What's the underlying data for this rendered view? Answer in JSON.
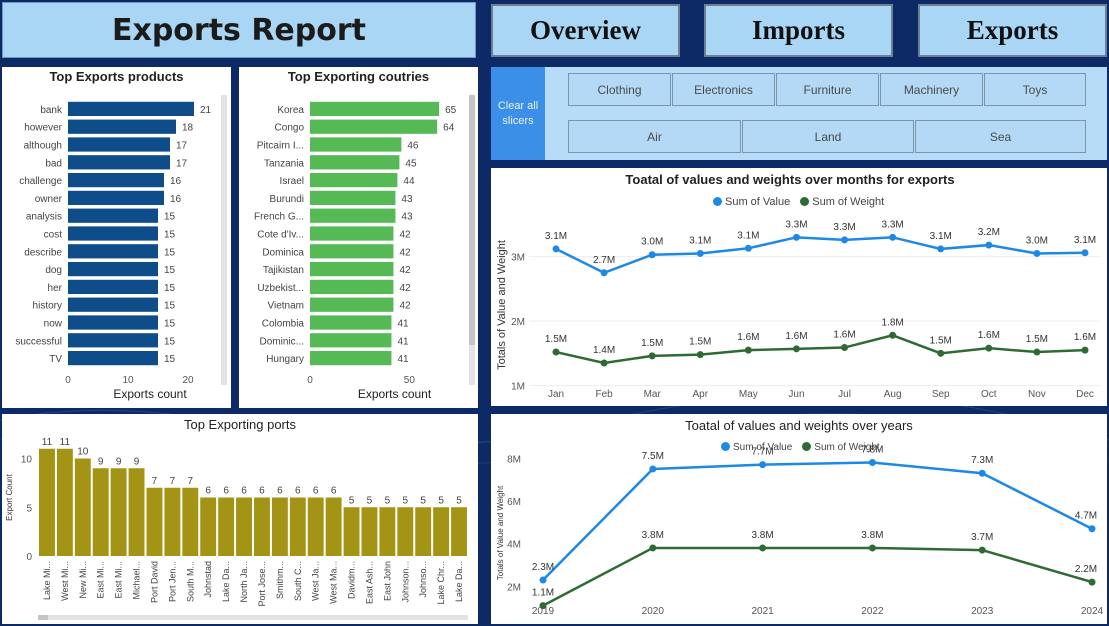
{
  "header": {
    "title": "Exports Report"
  },
  "nav": {
    "overview": "Overview",
    "imports": "Imports",
    "exports": "Exports"
  },
  "slicers": {
    "clear_label": "Clear all slicers",
    "categories": [
      "Clothing",
      "Electronics",
      "Furniture",
      "Machinery",
      "Toys"
    ],
    "modes": [
      "Air",
      "Land",
      "Sea"
    ]
  },
  "colors": {
    "navy_bar": "#0f4c8a",
    "green_bar": "#55b955",
    "olive_bar": "#a39415",
    "value_line": "#1e88e5",
    "weight_line": "#2e6b34"
  },
  "chart_data": [
    {
      "id": "top_products",
      "type": "bar",
      "orientation": "horizontal",
      "title": "Top Exports products",
      "xlabel": "Exports count",
      "ylabel": "",
      "categories": [
        "bank",
        "however",
        "although",
        "bad",
        "challenge",
        "owner",
        "analysis",
        "cost",
        "describe",
        "dog",
        "her",
        "history",
        "now",
        "successful",
        "TV"
      ],
      "values": [
        21,
        18,
        17,
        17,
        16,
        16,
        15,
        15,
        15,
        15,
        15,
        15,
        15,
        15,
        15
      ],
      "xlim": [
        0,
        24
      ],
      "ticks": [
        0,
        10,
        20
      ]
    },
    {
      "id": "top_countries",
      "type": "bar",
      "orientation": "horizontal",
      "title": "Top Exporting coutries",
      "xlabel": "Exports count",
      "ylabel": "",
      "categories": [
        "Korea",
        "Congo",
        "Pitcairn I...",
        "Tanzania",
        "Israel",
        "Burundi",
        "French G...",
        "Cote d'Iv...",
        "Dominica",
        "Tajikistan",
        "Uzbekist...",
        "Vietnam",
        "Colombia",
        "Dominic...",
        "Hungary"
      ],
      "values": [
        65,
        64,
        46,
        45,
        44,
        43,
        43,
        42,
        42,
        42,
        42,
        42,
        41,
        41,
        41
      ],
      "xlim": [
        0,
        75
      ],
      "ticks": [
        0,
        50
      ]
    },
    {
      "id": "top_ports",
      "type": "bar",
      "orientation": "vertical",
      "title": "Top Exporting ports",
      "xlabel": "",
      "ylabel": "Export Count",
      "categories": [
        "Lake Mi...",
        "West Mi...",
        "New Mi...",
        "East Mi...",
        "East Mi...",
        "Michael...",
        "Port David",
        "Port Jen...",
        "South M...",
        "Johnstad",
        "Lake Da...",
        "North Ja...",
        "Port Jose...",
        "Smithm...",
        "South C...",
        "West Ja...",
        "West Ma...",
        "Davidm...",
        "East Ash...",
        "East John",
        "Johnson...",
        "Johnso...",
        "Lake Chr...",
        "Lake Da..."
      ],
      "values": [
        11,
        11,
        10,
        9,
        9,
        9,
        7,
        7,
        7,
        6,
        6,
        6,
        6,
        6,
        6,
        6,
        6,
        5,
        5,
        5,
        5,
        5,
        5,
        5
      ],
      "ylim": [
        0,
        12
      ],
      "ticks": [
        0,
        5,
        10
      ]
    },
    {
      "id": "monthly",
      "type": "line",
      "title": "Toatal of values and weights over months for exports",
      "xlabel": "",
      "ylabel": "Totals of Value and Weight",
      "x": [
        "Jan",
        "Feb",
        "Mar",
        "Apr",
        "May",
        "Jun",
        "Jul",
        "Aug",
        "Sep",
        "Oct",
        "Nov",
        "Dec"
      ],
      "series": [
        {
          "name": "Sum of Value",
          "values": [
            3.12,
            2.75,
            3.03,
            3.05,
            3.13,
            3.3,
            3.26,
            3.3,
            3.12,
            3.18,
            3.05,
            3.06
          ],
          "labels": [
            "3.1M",
            "2.7M",
            "3.0M",
            "3.1M",
            "3.1M",
            "3.3M",
            "3.3M",
            "3.3M",
            "3.1M",
            "3.2M",
            "3.0M",
            "3.1M"
          ]
        },
        {
          "name": "Sum of Weight",
          "values": [
            1.52,
            1.35,
            1.46,
            1.48,
            1.55,
            1.57,
            1.59,
            1.78,
            1.5,
            1.58,
            1.52,
            1.55
          ],
          "labels": [
            "1.5M",
            "1.4M",
            "1.5M",
            "1.5M",
            "1.6M",
            "1.6M",
            "1.6M",
            "1.8M",
            "1.5M",
            "1.6M",
            "1.5M",
            "1.6M"
          ]
        }
      ],
      "ylim": [
        0.9,
        3.6
      ],
      "ticks": [
        1,
        2,
        3
      ],
      "tick_labels": [
        "1M",
        "2M",
        "3M"
      ]
    },
    {
      "id": "yearly",
      "type": "line",
      "title": "Toatal of values and weights over years",
      "xlabel": "",
      "ylabel": "Totals of Value and Weight",
      "x": [
        "2019",
        "2020",
        "2021",
        "2022",
        "2023",
        "2024"
      ],
      "series": [
        {
          "name": "Sum of Value",
          "values": [
            2.3,
            7.5,
            7.7,
            7.8,
            7.3,
            4.7
          ],
          "labels": [
            "2.3M",
            "7.5M",
            "7.7M",
            "7.8M",
            "7.3M",
            "4.7M"
          ]
        },
        {
          "name": "Sum of Weight",
          "values": [
            1.1,
            3.8,
            3.8,
            3.8,
            3.7,
            2.2
          ],
          "labels": [
            "1.1M",
            "3.8M",
            "3.8M",
            "3.8M",
            "3.7M",
            "2.2M"
          ]
        }
      ],
      "ylim": [
        0.8,
        8.2
      ],
      "ticks": [
        2,
        4,
        6,
        8
      ],
      "tick_labels": [
        "2M",
        "4M",
        "6M",
        "8M"
      ]
    }
  ]
}
